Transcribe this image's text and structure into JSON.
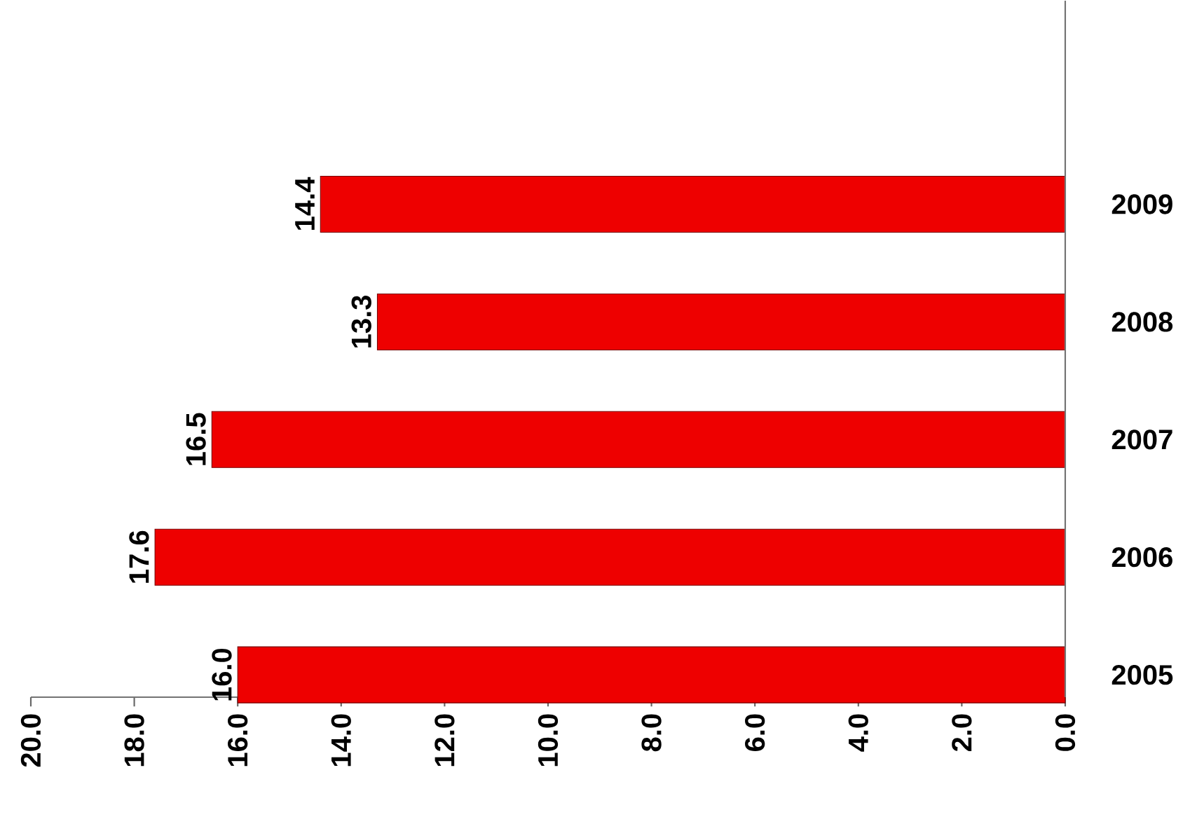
{
  "chart_data": {
    "type": "bar",
    "orientation": "horizontal",
    "categories": [
      "2009",
      "2008",
      "2007",
      "2006",
      "2005"
    ],
    "values": [
      14.4,
      13.3,
      16.5,
      17.6,
      16.0
    ],
    "value_labels": [
      "14.4",
      "13.3",
      "16.5",
      "17.6",
      "16.0"
    ],
    "color": "#ee0000",
    "xlim": [
      20,
      0
    ],
    "xticks": [
      {
        "value": 20,
        "label": "20.0"
      },
      {
        "value": 18,
        "label": "18.0"
      },
      {
        "value": 16,
        "label": "16.0"
      },
      {
        "value": 14,
        "label": "14.0"
      },
      {
        "value": 12,
        "label": "12.0"
      },
      {
        "value": 10,
        "label": "10.0"
      },
      {
        "value": 8,
        "label": "8.0"
      },
      {
        "value": 6,
        "label": "6.0"
      },
      {
        "value": 4,
        "label": "4.0"
      },
      {
        "value": 2,
        "label": "2.0"
      },
      {
        "value": 0,
        "label": "0.0"
      }
    ],
    "grid": false
  }
}
